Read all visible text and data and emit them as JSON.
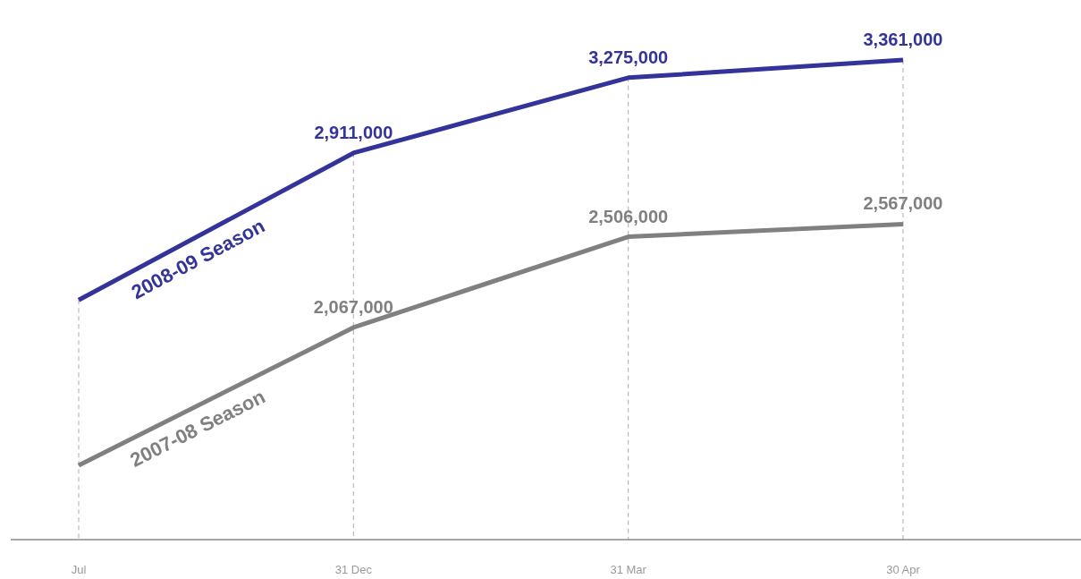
{
  "chart_data": {
    "type": "line",
    "categories": [
      "Jul",
      "31 Dec",
      "31 Mar",
      "30 Apr"
    ],
    "tick_labels": "x",
    "series": [
      {
        "name": "2008-09 Season",
        "color": "#333399",
        "values": [
          2200000,
          2911000,
          3275000,
          3361000
        ],
        "value_labels": [
          null,
          "2,911,000",
          "3,275,000",
          "3,361,000"
        ]
      },
      {
        "name": "2007-08 Season",
        "color": "#808080",
        "values": [
          1400000,
          2067000,
          2506000,
          2567000
        ],
        "value_labels": [
          null,
          "2,067,000",
          "2,506,000",
          "2,567,000"
        ]
      }
    ],
    "ref_lines": [
      {
        "axis": "x",
        "value": "Jul",
        "color": "#bbbbbb",
        "line_style": "dashed"
      },
      {
        "axis": "x",
        "value": "31 Dec",
        "color": "#bbbbbb",
        "line_style": "dashed"
      },
      {
        "axis": "x",
        "value": "31 Mar",
        "color": "#bbbbbb",
        "line_style": "dashed"
      },
      {
        "axis": "x",
        "value": "30 Apr",
        "color": "#bbbbbb",
        "line_style": "dashed"
      }
    ],
    "marker": "none",
    "line_style": "solid"
  }
}
